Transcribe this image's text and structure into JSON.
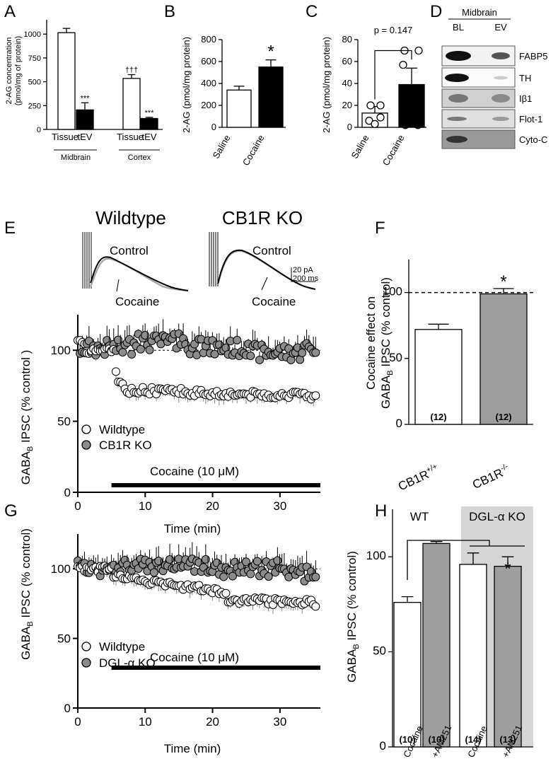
{
  "panel_labels": {
    "A": "A",
    "B": "B",
    "C": "C",
    "D": "D",
    "E": "E",
    "F": "F",
    "G": "G",
    "H": "H"
  },
  "chart_data": [
    {
      "id": "A",
      "type": "bar",
      "ylabel": "2-AG concentration (pmol/mg of protein)",
      "ylabel_line1": "2-AG concentration",
      "ylabel_line2": "(pmol/mg of protein)",
      "ylim": [
        0,
        1150
      ],
      "yticks": [
        0,
        250,
        500,
        750,
        1000
      ],
      "categories": [
        "Tissue",
        "tEV",
        "Tissue",
        "tEV"
      ],
      "groups": [
        "Midbrain",
        "Cortex"
      ],
      "values": [
        1015,
        205,
        535,
        115
      ],
      "errors": [
        45,
        75,
        40,
        12
      ],
      "fills": [
        "#ffffff",
        "#000000",
        "#ffffff",
        "#000000"
      ],
      "annotations": [
        "",
        "***",
        "†††",
        "***"
      ]
    },
    {
      "id": "B",
      "type": "bar",
      "ylabel": "2-AG (pmol/mg protein)",
      "ylim": [
        0,
        800
      ],
      "yticks": [
        0,
        200,
        400,
        600,
        800
      ],
      "categories": [
        "Saline",
        "Cocaine"
      ],
      "values": [
        340,
        550
      ],
      "errors": [
        35,
        65
      ],
      "fills": [
        "#ffffff",
        "#000000"
      ],
      "significance": "*"
    },
    {
      "id": "C",
      "type": "bar",
      "ylabel": "2-AG (pmol/mg protein)",
      "ylim": [
        0,
        80
      ],
      "yticks": [
        0,
        20,
        40,
        60,
        80
      ],
      "categories": [
        "Saline",
        "Cocaine"
      ],
      "values": [
        13,
        39
      ],
      "errors": [
        6,
        15
      ],
      "fills": [
        "#ffffff",
        "#000000"
      ],
      "points_saline": [
        6,
        9,
        20,
        20,
        3
      ],
      "points_cocaine": [
        57,
        70,
        70,
        2,
        2
      ],
      "pvalue": "p = 0.147"
    },
    {
      "id": "E",
      "type": "scatter",
      "ylabel": "GABAB IPSC (% control)",
      "ylabel_main": "GABA",
      "ylabel_sub": "B",
      "ylabel_rest": " IPSC (% control )",
      "xlabel": "Time (min)",
      "xlim": [
        0,
        36
      ],
      "ylim": [
        0,
        125
      ],
      "xticks": [
        0,
        10,
        20,
        30
      ],
      "yticks": [
        0,
        50,
        100
      ],
      "drug_label": "Cocaine (10 μM)",
      "drug_range": [
        5,
        36
      ],
      "series": [
        {
          "name": "Wildtype",
          "fill": "#ffffff"
        },
        {
          "name": "CB1R KO",
          "fill": "#8c8c8c"
        }
      ]
    },
    {
      "id": "F",
      "type": "bar",
      "ylabel": "Cocaine effect on GABAB IPSC (% control)",
      "ylabel_line1": "Cocaine effect on",
      "ylim": [
        0,
        125
      ],
      "yticks": [
        0,
        50,
        100
      ],
      "categories": [
        "CB1R +/+",
        "CB1R -/-"
      ],
      "cat_main": [
        "CB1R",
        "CB1R"
      ],
      "cat_sup": [
        "+/+",
        "-/-"
      ],
      "values": [
        72,
        99
      ],
      "errors": [
        4,
        4
      ],
      "fills": [
        "#ffffff",
        "#9e9e9e"
      ],
      "n_labels": [
        "(12)",
        "(12)"
      ],
      "significance": "*"
    },
    {
      "id": "G",
      "type": "scatter",
      "ylabel": "GABAB IPSC (% control)",
      "ylabel_rest": " IPSC (% control)",
      "xlabel": "Time (min)",
      "xlim": [
        0,
        36
      ],
      "ylim": [
        0,
        125
      ],
      "xticks": [
        0,
        10,
        20,
        30
      ],
      "yticks": [
        0,
        50,
        100
      ],
      "drug_label": "Cocaine (10 μM)",
      "drug_range": [
        5,
        36
      ],
      "series": [
        {
          "name": "Wildtype",
          "fill": "#ffffff"
        },
        {
          "name": "DGL-α KO",
          "fill": "#8c8c8c"
        }
      ]
    },
    {
      "id": "H",
      "type": "bar",
      "ylabel": "GABAB IPSC (% control)",
      "ylabel_rest": " IPSC (% control)",
      "ylim": [
        0,
        125
      ],
      "yticks": [
        0,
        50,
        100
      ],
      "categories": [
        "Cocaine",
        "+AM251",
        "Cocaine",
        "+AM251"
      ],
      "groups": [
        "WT",
        "DGL-α KO"
      ],
      "values": [
        76,
        107,
        96,
        95
      ],
      "errors": [
        3,
        1,
        6,
        5
      ],
      "fills": [
        "#ffffff",
        "#9e9e9e",
        "#ffffff",
        "#9e9e9e"
      ],
      "n_labels": [
        "(10)",
        "(10)",
        "(14)",
        "(13)"
      ],
      "significance": "*"
    }
  ],
  "blot": {
    "title": "Midbrain",
    "columns": [
      "BL",
      "EV"
    ],
    "rows": [
      "FABP5",
      "TH",
      "Iβ1",
      "Flot-1",
      "Cyto-C"
    ]
  },
  "traces": {
    "wildtype_title": "Wildtype",
    "ko_title": "CB1R KO",
    "control_label": "Control",
    "cocaine_label": "Cocaine",
    "scale_current": "20 pA",
    "scale_time": "200 ms"
  }
}
